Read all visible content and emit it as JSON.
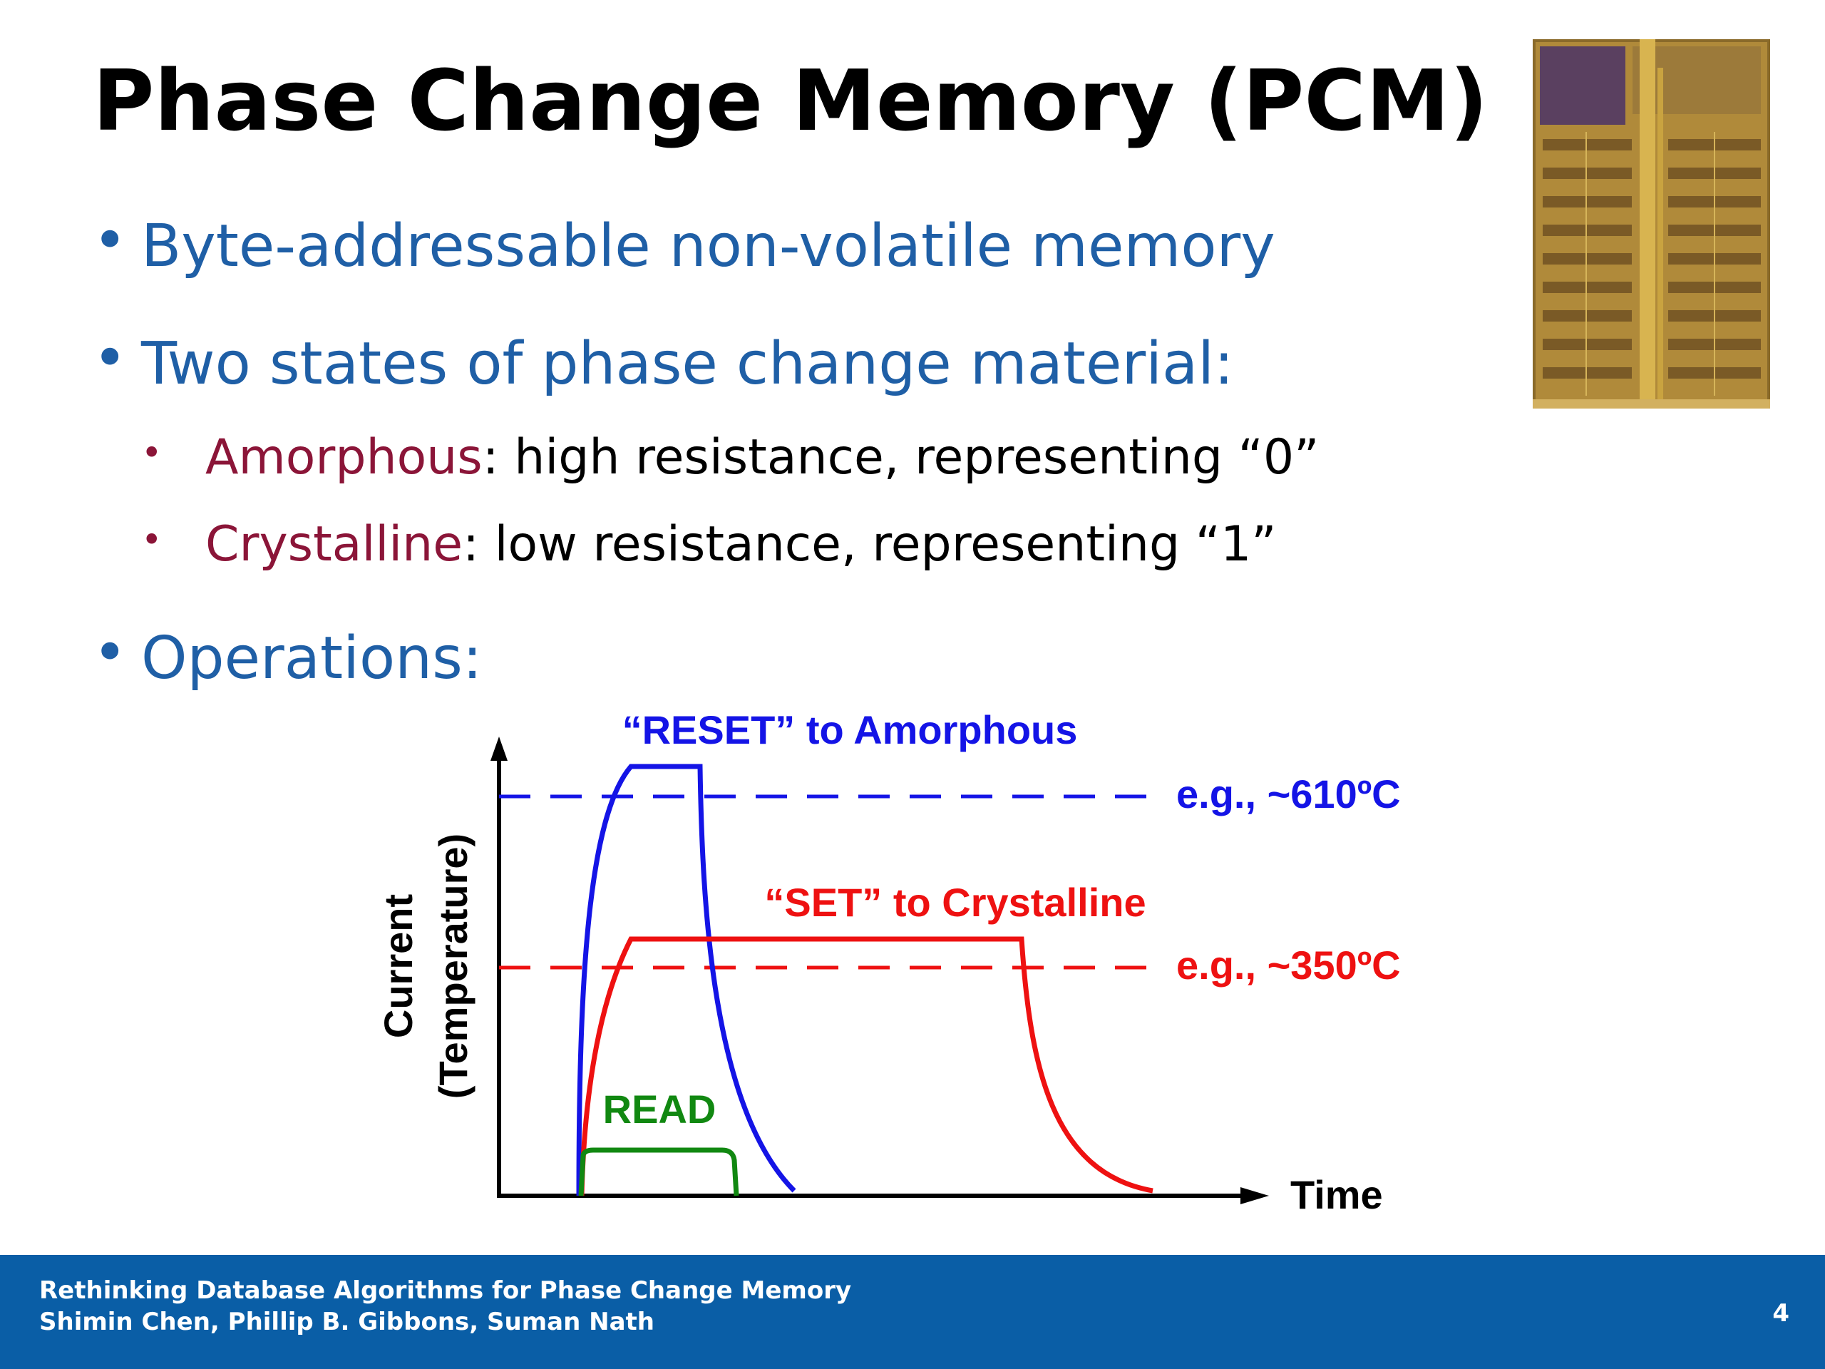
{
  "slide": {
    "title": "Phase Change Memory (PCM)",
    "bullets": [
      {
        "text": "Byte-addressable non-volatile memory"
      },
      {
        "text": "Two states of phase change material:"
      },
      {
        "text": "Operations:"
      }
    ],
    "sub_bullets": [
      {
        "term": "Amorphous",
        "rest": ":  high resistance, representing “0”"
      },
      {
        "term": "Crystalline",
        "rest": ": low resistance, representing “1”"
      }
    ],
    "image_alt": "PCM chip die photo"
  },
  "diagram": {
    "y_axis_label_line1": "Current",
    "y_axis_label_line2": "(Temperature)",
    "x_axis_label": "Time",
    "reset_label": "“RESET” to Amorphous",
    "set_label": "“SET” to Crystalline",
    "read_label": "READ",
    "reset_temp": "e.g., ~610ºC",
    "set_temp": "e.g., ~350ºC",
    "colors": {
      "reset": "#1414e6",
      "set": "#ee1111",
      "read": "#118811"
    }
  },
  "footer": {
    "line1": "Rethinking Database Algorithms for Phase Change Memory",
    "line2": "Shimin Chen, Phillip B. Gibbons, Suman Nath",
    "page": "4"
  }
}
